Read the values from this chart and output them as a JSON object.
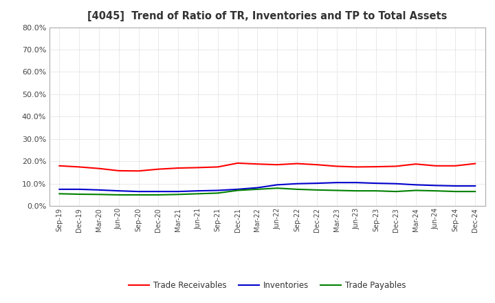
{
  "title": "[4045]  Trend of Ratio of TR, Inventories and TP to Total Assets",
  "x_labels": [
    "Sep-19",
    "Dec-19",
    "Mar-20",
    "Jun-20",
    "Sep-20",
    "Dec-20",
    "Mar-21",
    "Jun-21",
    "Sep-21",
    "Dec-21",
    "Mar-22",
    "Jun-22",
    "Sep-22",
    "Dec-22",
    "Mar-23",
    "Jun-23",
    "Sep-23",
    "Dec-23",
    "Mar-24",
    "Jun-24",
    "Sep-24",
    "Dec-24"
  ],
  "trade_receivables": [
    18.0,
    17.5,
    16.8,
    15.8,
    15.7,
    16.5,
    17.0,
    17.2,
    17.5,
    19.2,
    18.8,
    18.5,
    19.0,
    18.5,
    17.8,
    17.5,
    17.6,
    17.8,
    18.8,
    18.0,
    18.0,
    19.0
  ],
  "inventories": [
    7.5,
    7.5,
    7.2,
    6.8,
    6.5,
    6.5,
    6.5,
    6.8,
    7.0,
    7.5,
    8.2,
    9.5,
    10.0,
    10.2,
    10.5,
    10.5,
    10.2,
    10.0,
    9.5,
    9.2,
    9.0,
    9.0
  ],
  "trade_payables": [
    5.5,
    5.3,
    5.2,
    5.0,
    5.0,
    5.0,
    5.2,
    5.5,
    5.8,
    7.0,
    7.5,
    8.0,
    7.5,
    7.2,
    7.0,
    6.8,
    6.8,
    6.5,
    7.0,
    6.8,
    6.5,
    6.5
  ],
  "color_tr": "#FF0000",
  "color_inv": "#0000CD",
  "color_tp": "#008000",
  "ylim": [
    0,
    80
  ],
  "yticks": [
    0,
    10,
    20,
    30,
    40,
    50,
    60,
    70,
    80
  ],
  "legend_labels": [
    "Trade Receivables",
    "Inventories",
    "Trade Payables"
  ],
  "background_color": "#FFFFFF",
  "grid_color": "#BBBBBB",
  "title_color": "#333333"
}
